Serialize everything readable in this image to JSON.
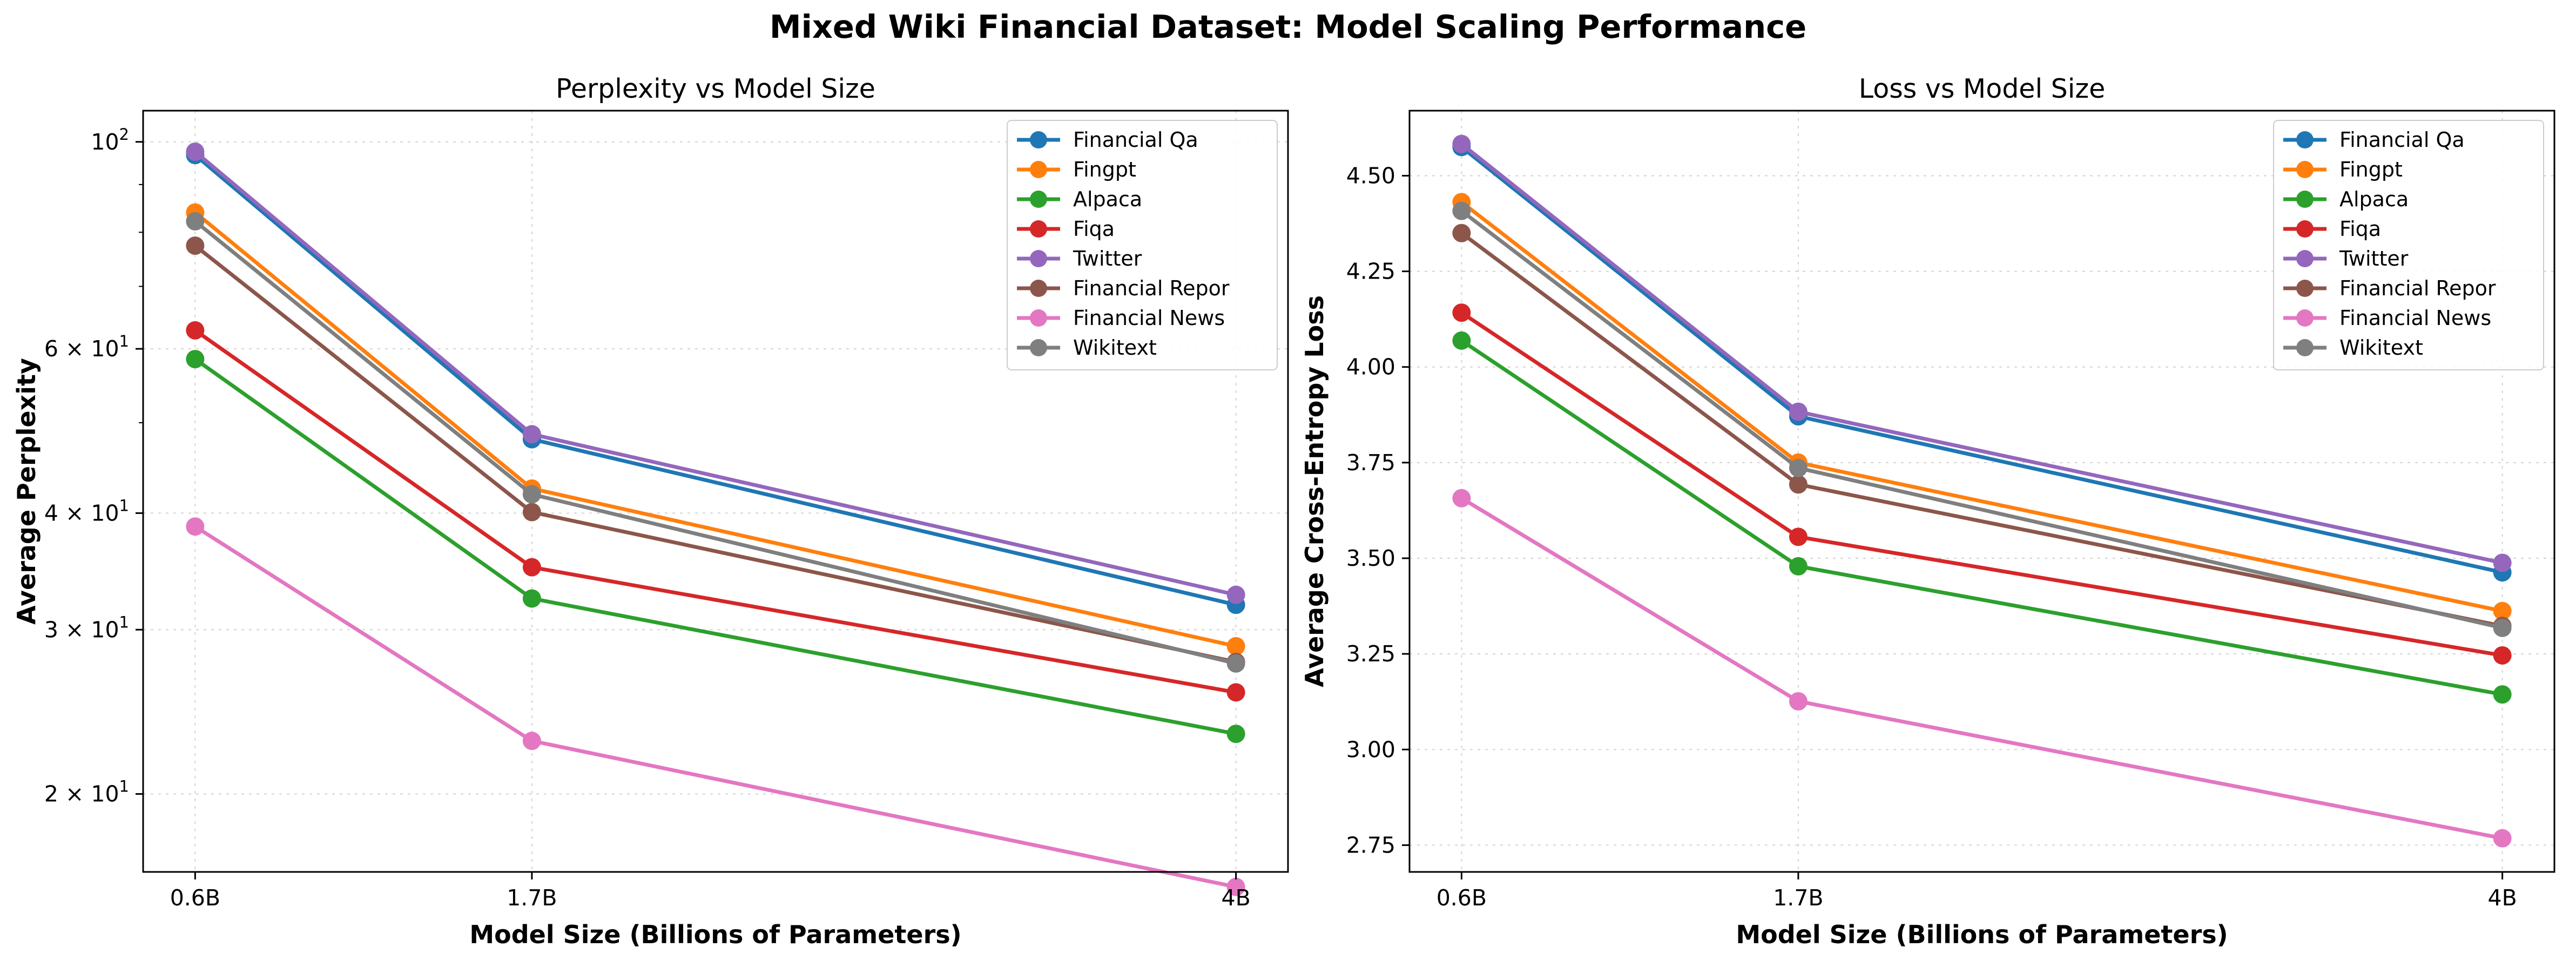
{
  "figure": {
    "title": "Mixed Wiki Financial Dataset: Model Scaling Performance"
  },
  "chart_data": [
    {
      "type": "line",
      "title": "Perplexity vs Model Size",
      "xlabel": "Model Size (Billions of Parameters)",
      "ylabel": "Average Perplexity",
      "yscale": "log",
      "x": [
        0.6,
        1.7,
        4
      ],
      "x_tick_labels": [
        "0.6B",
        "1.7B",
        "4B"
      ],
      "y_tick_labels": [
        {
          "base": "10",
          "exp": "2",
          "mant": "",
          "value": 100
        },
        {
          "base": "10",
          "exp": "1",
          "mant": "6 × ",
          "value": 60
        },
        {
          "base": "10",
          "exp": "1",
          "mant": "4 × ",
          "value": 40
        },
        {
          "base": "10",
          "exp": "1",
          "mant": "3 × ",
          "value": 30
        },
        {
          "base": "10",
          "exp": "1",
          "mant": "2 × ",
          "value": 20
        }
      ],
      "ylim": [
        16.5,
        108
      ],
      "grid": true,
      "legend": "top-right",
      "series": [
        {
          "name": "Financial Qa",
          "color": "#1f77b4",
          "values": [
            96.8,
            48.0,
            31.9
          ]
        },
        {
          "name": "Fingpt",
          "color": "#ff7f0e",
          "values": [
            84.0,
            42.5,
            28.8
          ]
        },
        {
          "name": "Alpaca",
          "color": "#2ca02c",
          "values": [
            58.5,
            32.4,
            23.2
          ]
        },
        {
          "name": "Fiqa",
          "color": "#d62728",
          "values": [
            62.8,
            35.0,
            25.7
          ]
        },
        {
          "name": "Twitter",
          "color": "#9467bd",
          "values": [
            97.6,
            48.6,
            32.7
          ]
        },
        {
          "name": "Financial Repor",
          "color": "#8c564b",
          "values": [
            77.4,
            40.1,
            27.7
          ]
        },
        {
          "name": "Financial News",
          "color": "#e377c2",
          "values": [
            38.7,
            22.8,
            15.9
          ]
        },
        {
          "name": "Wikitext",
          "color": "#7f7f7f",
          "values": [
            82.2,
            41.9,
            27.6
          ]
        }
      ]
    },
    {
      "type": "line",
      "title": "Loss vs Model Size",
      "xlabel": "Model Size (Billions of Parameters)",
      "ylabel": "Average Cross-Entropy Loss",
      "yscale": "linear",
      "x": [
        0.6,
        1.7,
        4
      ],
      "x_tick_labels": [
        "0.6B",
        "1.7B",
        "4B"
      ],
      "y_ticks": [
        2.75,
        3.0,
        3.25,
        3.5,
        3.75,
        4.0,
        4.25,
        4.5
      ],
      "y_tick_labels": [
        "2.75",
        "3.00",
        "3.25",
        "3.50",
        "3.75",
        "4.00",
        "4.25",
        "4.50"
      ],
      "ylim": [
        2.68,
        4.67
      ],
      "grid": true,
      "legend": "top-right",
      "series": [
        {
          "name": "Financial Qa",
          "color": "#1f77b4",
          "values": [
            4.575,
            3.871,
            3.463
          ]
        },
        {
          "name": "Fingpt",
          "color": "#ff7f0e",
          "values": [
            4.431,
            3.75,
            3.362
          ]
        },
        {
          "name": "Alpaca",
          "color": "#2ca02c",
          "values": [
            4.069,
            3.479,
            3.144
          ]
        },
        {
          "name": "Fiqa",
          "color": "#d62728",
          "values": [
            4.142,
            3.556,
            3.246
          ]
        },
        {
          "name": "Twitter",
          "color": "#9467bd",
          "values": [
            4.583,
            3.883,
            3.488
          ]
        },
        {
          "name": "Financial Repor",
          "color": "#8c564b",
          "values": [
            4.35,
            3.693,
            3.323
          ]
        },
        {
          "name": "Financial News",
          "color": "#e377c2",
          "values": [
            3.657,
            3.126,
            2.768
          ]
        },
        {
          "name": "Wikitext",
          "color": "#7f7f7f",
          "values": [
            4.408,
            3.736,
            3.318
          ]
        }
      ]
    }
  ]
}
